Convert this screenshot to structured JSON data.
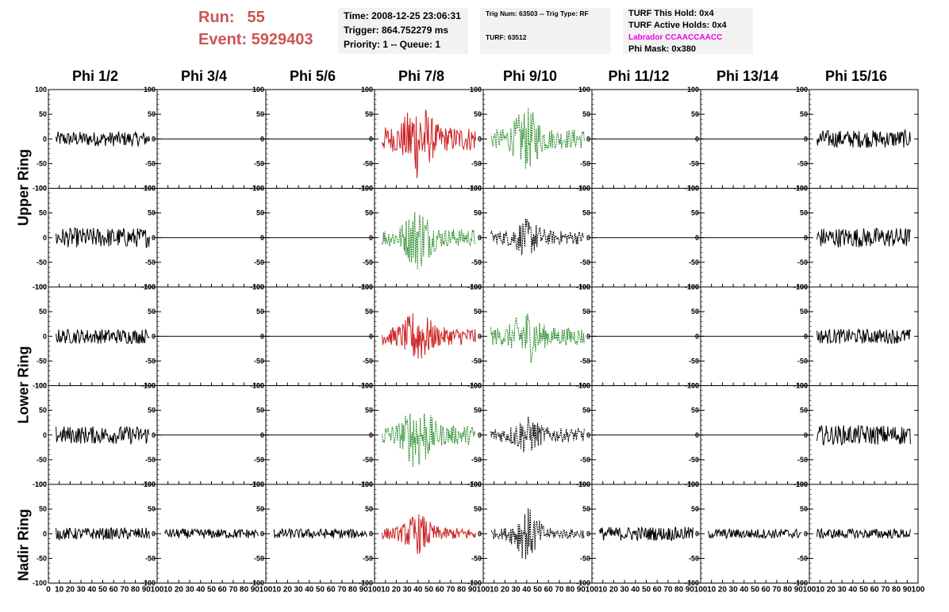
{
  "header": {
    "run_label": "Run:",
    "run_value": "55",
    "event_label": "Event:",
    "event_value": "5929403",
    "time": "Time: 2008-12-25 23:06:31",
    "trigger": "Trigger: 864.752279 ms",
    "priority": "Priority: 1 -- Queue: 1",
    "trig_num": "Trig Num: 63503 -- Trig Type: RF",
    "turf": "TURF: 63512",
    "turf_this_hold": "TURF This Hold: 0x4",
    "turf_active_holds": "TURF Active Holds: 0x4",
    "labrador": "Labrador CCAACCAACC",
    "phi_mask": "Phi Mask: 0x380"
  },
  "colors": {
    "run_text": "#cc5555",
    "labrador_text": "#ee00ee",
    "trace_black": "#000000",
    "trace_red": "#cc2222",
    "trace_green": "#228822"
  },
  "chart_data": {
    "type": "line",
    "columns": [
      "Phi 1/2",
      "Phi 3/4",
      "Phi 5/6",
      "Phi 7/8",
      "Phi 9/10",
      "Phi 11/12",
      "Phi 13/14",
      "Phi 15/16"
    ],
    "ring_labels": [
      "Upper Ring",
      "Lower Ring",
      "Nadir Ring"
    ],
    "ylim": [
      -100,
      100
    ],
    "yticks": [
      -100,
      -50,
      0,
      50,
      100
    ],
    "xlim": [
      0,
      100
    ],
    "xticks": [
      0,
      10,
      20,
      30,
      40,
      50,
      60,
      70,
      80,
      90,
      100
    ],
    "grid": false,
    "rows": [
      [
        {
          "style": "black",
          "amp": 15
        },
        {
          "style": "flat",
          "amp": 0
        },
        {
          "style": "flat",
          "amp": 0
        },
        {
          "style": "red",
          "amp": 25,
          "burst": 60
        },
        {
          "style": "green",
          "amp": 20,
          "burst": 45
        },
        {
          "style": "flat",
          "amp": 0
        },
        {
          "style": "flat",
          "amp": 0
        },
        {
          "style": "black",
          "amp": 18
        }
      ],
      [
        {
          "style": "black",
          "amp": 20
        },
        {
          "style": "flat",
          "amp": 0
        },
        {
          "style": "flat",
          "amp": 0
        },
        {
          "style": "green",
          "amp": 18,
          "burst": 50
        },
        {
          "style": "dblack",
          "amp": 14,
          "burst": 25
        },
        {
          "style": "flat",
          "amp": 0
        },
        {
          "style": "flat",
          "amp": 0
        },
        {
          "style": "black",
          "amp": 20
        }
      ],
      [
        {
          "style": "black",
          "amp": 15
        },
        {
          "style": "flat",
          "amp": 0
        },
        {
          "style": "flat",
          "amp": 0
        },
        {
          "style": "red",
          "amp": 18,
          "burst": 40
        },
        {
          "style": "green",
          "amp": 18,
          "burst": 40
        },
        {
          "style": "flat",
          "amp": 0
        },
        {
          "style": "flat",
          "amp": 0
        },
        {
          "style": "black",
          "amp": 15
        }
      ],
      [
        {
          "style": "black",
          "amp": 18
        },
        {
          "style": "flat",
          "amp": 0
        },
        {
          "style": "flat",
          "amp": 0
        },
        {
          "style": "green",
          "amp": 20,
          "burst": 55
        },
        {
          "style": "dblack",
          "amp": 14,
          "burst": 25
        },
        {
          "style": "flat",
          "amp": 0
        },
        {
          "style": "flat",
          "amp": 0
        },
        {
          "style": "black",
          "amp": 20
        }
      ],
      [
        {
          "style": "black",
          "amp": 12
        },
        {
          "style": "black",
          "amp": 10
        },
        {
          "style": "black",
          "amp": 10
        },
        {
          "style": "red",
          "amp": 12,
          "burst": 30
        },
        {
          "style": "dblack",
          "amp": 10,
          "burst": 45
        },
        {
          "style": "black",
          "amp": 14
        },
        {
          "style": "black",
          "amp": 10
        },
        {
          "style": "black",
          "amp": 10
        }
      ]
    ]
  }
}
